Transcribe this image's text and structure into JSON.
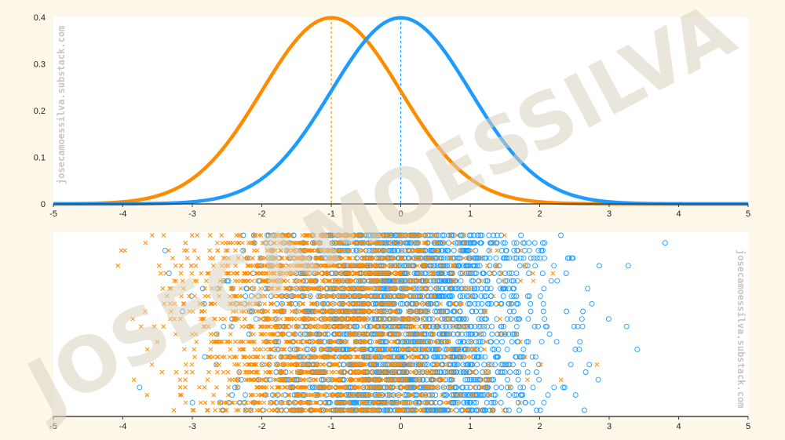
{
  "watermark": {
    "big_text": "JOSECAMOESSILVA",
    "small_text": "josecamoessilva.substack.com"
  },
  "colors": {
    "background": "#fdf8e9",
    "panel": "#ffffff",
    "series_a": "#ff8c00",
    "series_b": "#1e9bff",
    "axis": "#444444"
  },
  "chart_data": [
    {
      "type": "line",
      "title": "",
      "xlabel": "",
      "ylabel": "",
      "xlim": [
        -5,
        5
      ],
      "ylim": [
        0,
        0.4
      ],
      "xticks": [
        "-5",
        "-4",
        "-3",
        "-2",
        "-1",
        "0",
        "1",
        "2",
        "3",
        "4",
        "5"
      ],
      "yticks": [
        "0",
        "0.1",
        "0.2",
        "0.3",
        "0.4"
      ],
      "grid": false,
      "series": [
        {
          "key": "orange",
          "color": "#ff8c00",
          "mean": -1,
          "std": 1,
          "x": [
            -5,
            -4.5,
            -4,
            -3.5,
            -3,
            -2.5,
            -2,
            -1.5,
            -1,
            -0.5,
            0,
            0.5,
            1,
            1.5,
            2,
            2.5,
            3,
            3.5,
            4,
            4.5,
            5
          ],
          "y": [
            0.0001,
            0.0009,
            0.0044,
            0.0175,
            0.054,
            0.1295,
            0.242,
            0.3521,
            0.3989,
            0.3521,
            0.242,
            0.1295,
            0.054,
            0.0175,
            0.0044,
            0.0009,
            0.0001,
            0.0,
            0.0,
            0.0,
            0.0
          ]
        },
        {
          "key": "blue",
          "color": "#1e9bff",
          "mean": 0,
          "std": 1,
          "x": [
            -5,
            -4.5,
            -4,
            -3.5,
            -3,
            -2.5,
            -2,
            -1.5,
            -1,
            -0.5,
            0,
            0.5,
            1,
            1.5,
            2,
            2.5,
            3,
            3.5,
            4,
            4.5,
            5
          ],
          "y": [
            0.0,
            0.0,
            0.0001,
            0.0009,
            0.0044,
            0.0175,
            0.054,
            0.1295,
            0.242,
            0.3521,
            0.3989,
            0.3521,
            0.242,
            0.1295,
            0.054,
            0.0175,
            0.0044,
            0.0009,
            0.0001,
            0.0,
            0.0
          ]
        }
      ],
      "reference_lines": [
        {
          "x": -1,
          "color": "#ff8c00",
          "style": "dashed"
        },
        {
          "x": 0,
          "color": "#1e9bff",
          "style": "dashed"
        }
      ]
    },
    {
      "type": "scatter",
      "title": "",
      "xlabel": "",
      "ylabel": "",
      "xlim": [
        -5,
        5
      ],
      "xticks": [
        "-5",
        "-4",
        "-3",
        "-2",
        "-1",
        "0",
        "1",
        "2",
        "3",
        "4",
        "5"
      ],
      "grid": false,
      "rows": 24,
      "series": [
        {
          "key": "orange",
          "marker": "x",
          "color": "#ff8c00",
          "mean": -1,
          "std": 1,
          "n": 2600
        },
        {
          "key": "blue",
          "marker": "o",
          "color": "#1e9bff",
          "mean": 0,
          "std": 1,
          "n": 2600
        }
      ]
    }
  ]
}
